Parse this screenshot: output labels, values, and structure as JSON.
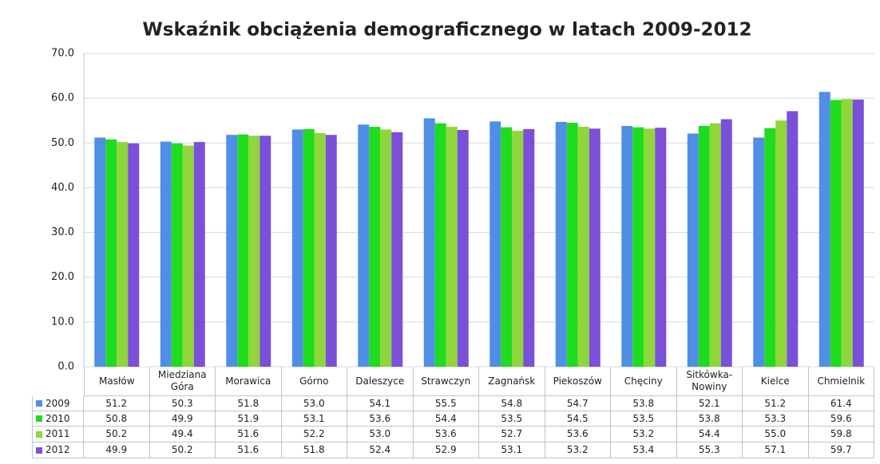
{
  "chart_data": {
    "type": "bar",
    "title": "Wskaźnik obciążenia demograficznego w latach 2009-2012",
    "categories": [
      "Masłów",
      "Miedziana Góra",
      "Morawica",
      "Górno",
      "Daleszyce",
      "Strawczyn",
      "Zagnańsk",
      "Piekoszów",
      "Chęciny",
      "Sitkówka-Nowiny",
      "Kielce",
      "Chmielnik"
    ],
    "series": [
      {
        "name": "2009",
        "color": "#4f8fe6",
        "values": [
          51.2,
          50.3,
          51.8,
          53.0,
          54.1,
          55.5,
          54.8,
          54.7,
          53.8,
          52.1,
          51.2,
          61.4
        ],
        "value_labels": [
          "51.2",
          "50.3",
          "51.8",
          "53.0",
          "54.1",
          "55.5",
          "54.8",
          "54.7",
          "53.8",
          "52.1",
          "51.2",
          "61.4"
        ]
      },
      {
        "name": "2010",
        "color": "#1fdc1f",
        "values": [
          50.8,
          49.9,
          51.9,
          53.1,
          53.6,
          54.4,
          53.5,
          54.5,
          53.5,
          53.8,
          53.3,
          59.6
        ],
        "value_labels": [
          "50.8",
          "49.9",
          "51.9",
          "53.1",
          "53.6",
          "54.4",
          "53.5",
          "54.5",
          "53.5",
          "53.8",
          "53.3",
          "59.6"
        ]
      },
      {
        "name": "2011",
        "color": "#8ed63a",
        "values": [
          50.2,
          49.4,
          51.6,
          52.2,
          53.0,
          53.6,
          52.7,
          53.6,
          53.2,
          54.4,
          55.0,
          59.8
        ],
        "value_labels": [
          "50.2",
          "49.4",
          "51.6",
          "52.2",
          "53.0",
          "53.6",
          "52.7",
          "53.6",
          "53.2",
          "54.4",
          "55.0",
          "59.8"
        ]
      },
      {
        "name": "2012",
        "color": "#7a50d8",
        "values": [
          49.9,
          50.2,
          51.6,
          51.8,
          52.4,
          52.9,
          53.1,
          53.2,
          53.4,
          55.3,
          57.1,
          59.7
        ],
        "value_labels": [
          "49.9",
          "50.2",
          "51.6",
          "51.8",
          "52.4",
          "52.9",
          "53.1",
          "53.2",
          "53.4",
          "55.3",
          "57.1",
          "59.7"
        ]
      }
    ],
    "ylim": [
      0,
      70
    ],
    "yticks": [
      {
        "value": 0,
        "label": "0.0"
      },
      {
        "value": 10,
        "label": "10.0"
      },
      {
        "value": 20,
        "label": "20.0"
      },
      {
        "value": 30,
        "label": "30.0"
      },
      {
        "value": 40,
        "label": "40.0"
      },
      {
        "value": 50,
        "label": "50.0"
      },
      {
        "value": 60,
        "label": "60.0"
      },
      {
        "value": 70,
        "label": "70.0"
      }
    ],
    "grid": true
  }
}
